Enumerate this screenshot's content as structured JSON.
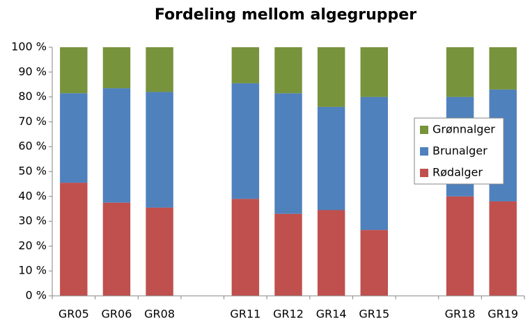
{
  "chart_data": {
    "type": "stacked_bar",
    "title": "Fordeling mellom algegrupper",
    "categories": [
      "GR05",
      "GR06",
      "GR08",
      null,
      "GR11",
      "GR12",
      "GR14",
      "GR15",
      null,
      "GR18",
      "GR19"
    ],
    "series": [
      {
        "name": "Rødalger",
        "color": "#c0504d",
        "values": [
          45.5,
          37.5,
          35.5,
          null,
          39,
          33,
          34.5,
          26.5,
          null,
          40,
          38
        ]
      },
      {
        "name": "Brunalger",
        "color": "#4f81bd",
        "values": [
          36,
          46,
          46.5,
          null,
          46.5,
          48.5,
          41.5,
          53.5,
          null,
          40,
          45
        ]
      },
      {
        "name": "Grønnalger",
        "color": "#77933c",
        "values": [
          18.5,
          16.5,
          18,
          null,
          14.5,
          18.5,
          24,
          20,
          null,
          20,
          17
        ]
      }
    ],
    "ylim": [
      0,
      100
    ],
    "yticks": [
      {
        "value": 0,
        "label": "0 %"
      },
      {
        "value": 10,
        "label": "10 %"
      },
      {
        "value": 20,
        "label": "20 %"
      },
      {
        "value": 30,
        "label": "30 %"
      },
      {
        "value": 40,
        "label": "40 %"
      },
      {
        "value": 50,
        "label": "50 %"
      },
      {
        "value": 60,
        "label": "60 %"
      },
      {
        "value": 70,
        "label": "70 %"
      },
      {
        "value": 80,
        "label": "80 %"
      },
      {
        "value": 90,
        "label": "90 %"
      },
      {
        "value": 100,
        "label": "100 %"
      }
    ],
    "legend": "right",
    "grid": false
  }
}
